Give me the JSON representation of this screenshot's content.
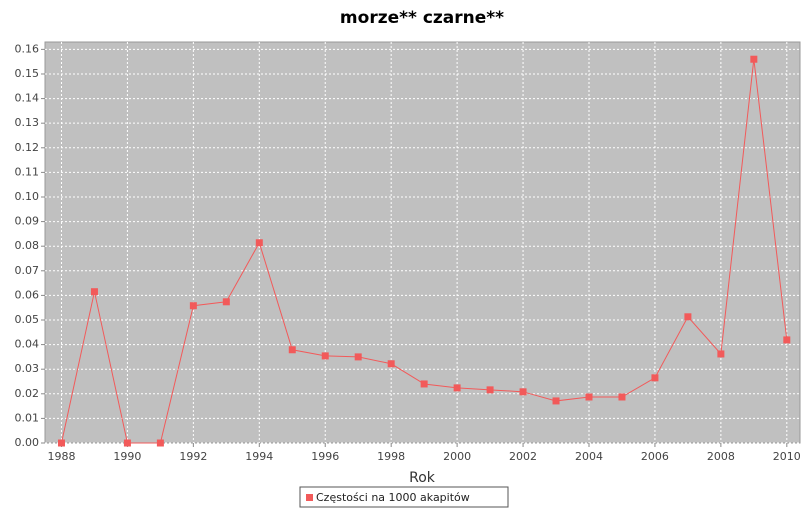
{
  "chart_data": {
    "type": "line",
    "title": "morze** czarne**",
    "x_label": "Rok",
    "x": [
      1988,
      1989,
      1990,
      1991,
      1992,
      1993,
      1994,
      1995,
      1996,
      1997,
      1998,
      1999,
      2000,
      2001,
      2002,
      2003,
      2004,
      2005,
      2006,
      2007,
      2008,
      2009,
      2010
    ],
    "series": [
      {
        "name": "Częstości na 1000 akapitów",
        "color": "#f25a5a",
        "values": [
          0,
          0.0615,
          0,
          0,
          0.0558,
          0.0574,
          0.0814,
          0.0379,
          0.0354,
          0.035,
          0.0322,
          0.024,
          0.0224,
          0.0216,
          0.0208,
          0.0171,
          0.0187,
          0.0187,
          0.0265,
          0.0513,
          0.0362,
          0.156,
          0.0419
        ]
      }
    ],
    "xlim": [
      1987.5,
      2010.4
    ],
    "xticks": [
      1988,
      1990,
      1992,
      1994,
      1996,
      1998,
      2000,
      2002,
      2004,
      2006,
      2008,
      2010
    ],
    "ylim": [
      0,
      0.163
    ],
    "yticks": [
      {
        "value": 0,
        "label": "0.00"
      },
      {
        "value": 0.01,
        "label": "0.01"
      },
      {
        "value": 0.02,
        "label": "0.02"
      },
      {
        "value": 0.03,
        "label": "0.03"
      },
      {
        "value": 0.04,
        "label": "0.04"
      },
      {
        "value": 0.05,
        "label": "0.05"
      },
      {
        "value": 0.06,
        "label": "0.06"
      },
      {
        "value": 0.07,
        "label": "0.07"
      },
      {
        "value": 0.08,
        "label": "0.08"
      },
      {
        "value": 0.09,
        "label": "0.09"
      },
      {
        "value": 0.1,
        "label": "0.10"
      },
      {
        "value": 0.11,
        "label": "0.11"
      },
      {
        "value": 0.12,
        "label": "0.12"
      },
      {
        "value": 0.13,
        "label": "0.13"
      },
      {
        "value": 0.14,
        "label": "0.14"
      },
      {
        "value": 0.15,
        "label": "0.15"
      },
      {
        "value": 0.16,
        "label": "0.16"
      }
    ],
    "grid": true,
    "background": "#c0c0c0"
  }
}
